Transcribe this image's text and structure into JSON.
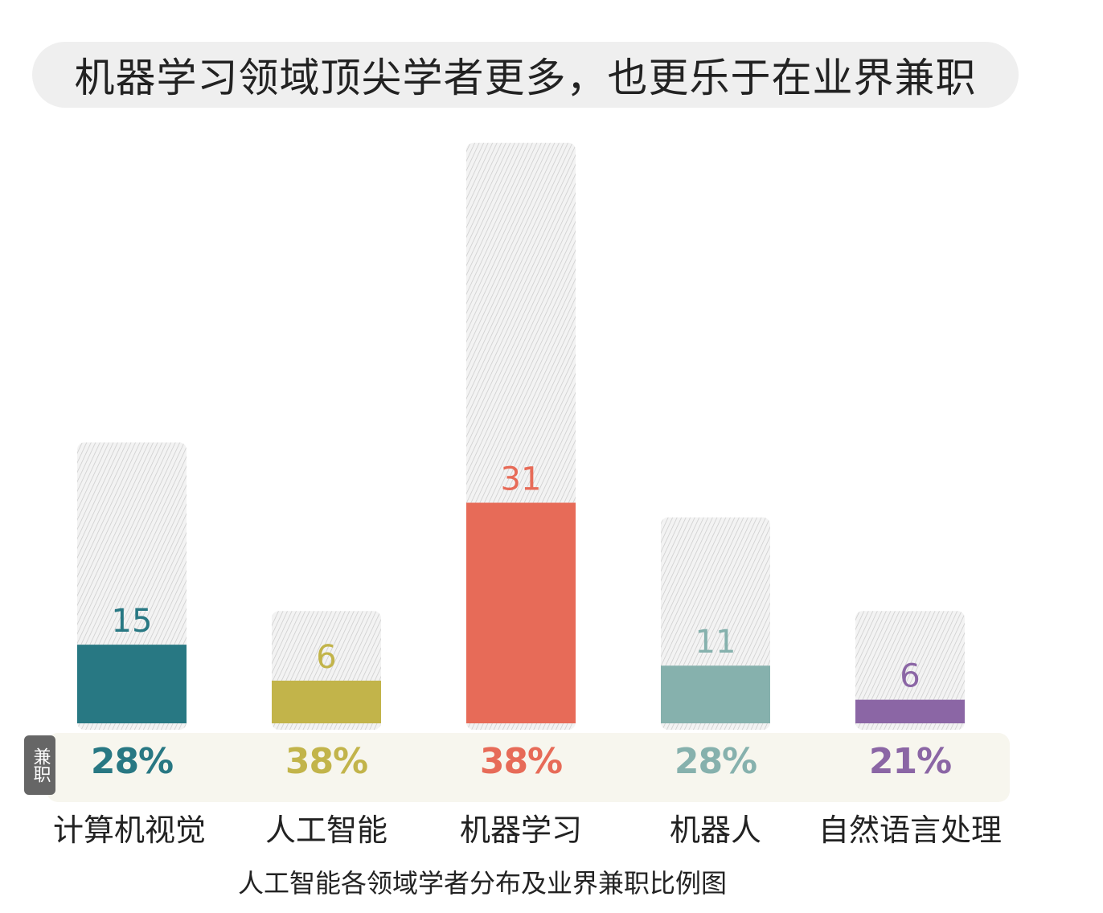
{
  "title": "机器学习领域顶尖学者更多，也更乐于在业界兼职",
  "side_tag": "兼职",
  "caption": "人工智能各领域学者分布及业界兼职比例图",
  "chart_data": {
    "type": "bar",
    "categories": [
      "计算机视觉",
      "人工智能",
      "机器学习",
      "机器人",
      "自然语言处理"
    ],
    "values": [
      15,
      6,
      31,
      11,
      6
    ],
    "value_labels": [
      "15",
      "6",
      "31",
      "11",
      "6"
    ],
    "part_time_ratio": [
      0.28,
      0.38,
      0.38,
      0.28,
      0.21
    ],
    "part_time_labels": [
      "28%",
      "38%",
      "38%",
      "28%",
      "21%"
    ],
    "colors": [
      "#287883",
      "#c2b44a",
      "#e76b58",
      "#86b1ad",
      "#8b66a5"
    ],
    "grid": false
  }
}
